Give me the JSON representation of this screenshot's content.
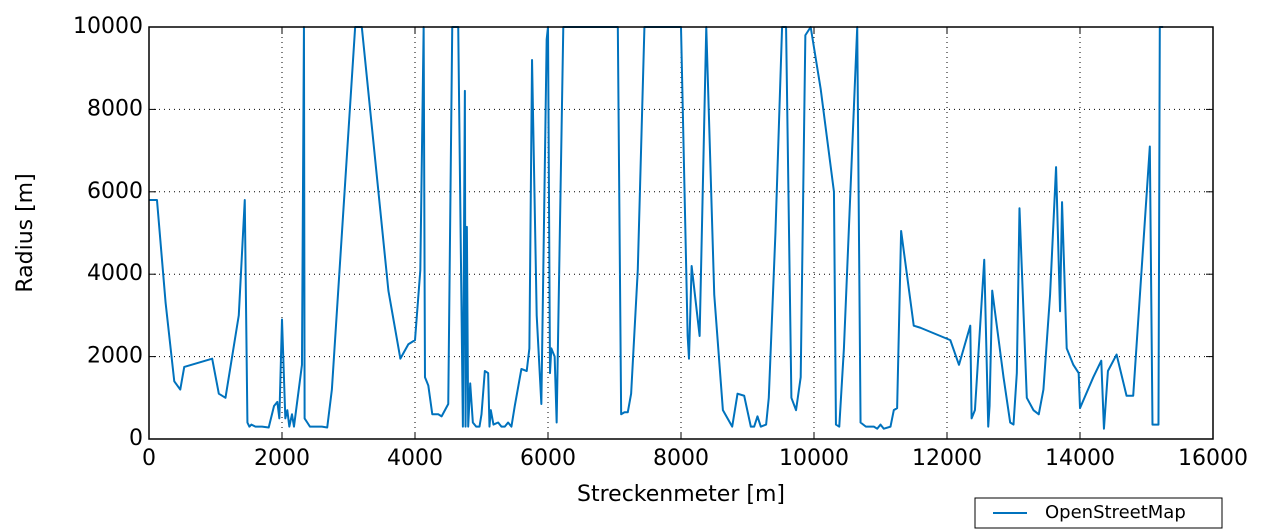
{
  "chart_data": {
    "type": "line",
    "xlabel": "Streckenmeter [m]",
    "ylabel": "Radius [m]",
    "x": [
      0,
      120,
      250,
      380,
      470,
      530,
      950,
      1050,
      1150,
      1350,
      1440,
      1480,
      1510,
      1540,
      1600,
      1700,
      1800,
      1880,
      1930,
      1960,
      2000,
      2050,
      2080,
      2110,
      2150,
      2180,
      2300,
      2330,
      2340,
      2380,
      2420,
      2500,
      2600,
      2680,
      2750,
      3100,
      3200,
      3600,
      3780,
      3900,
      4000,
      4080,
      4130,
      4150,
      4200,
      4260,
      4350,
      4400,
      4500,
      4560,
      4650,
      4720,
      4750,
      4760,
      4780,
      4800,
      4830,
      4870,
      4920,
      4970,
      5000,
      5050,
      5100,
      5120,
      5140,
      5180,
      5250,
      5300,
      5350,
      5400,
      5450,
      5500,
      5600,
      5680,
      5720,
      5760,
      5830,
      5900,
      5980,
      6000,
      6030,
      6050,
      6100,
      6130,
      6230,
      7050,
      7100,
      7150,
      7200,
      7250,
      7350,
      7450,
      7950,
      8000,
      8100,
      8120,
      8160,
      8280,
      8380,
      8500,
      8630,
      8700,
      8770,
      8850,
      8950,
      9050,
      9100,
      9150,
      9200,
      9280,
      9320,
      9420,
      9520,
      9580,
      9660,
      9730,
      9800,
      9870,
      9950,
      10000,
      10100,
      10300,
      10330,
      10380,
      10450,
      10650,
      10700,
      10780,
      10900,
      10950,
      11000,
      11050,
      11150,
      11200,
      11250,
      11310,
      11500,
      11600,
      12050,
      12180,
      12350,
      12370,
      12420,
      12560,
      12620,
      12640,
      12680,
      12850,
      12950,
      13000,
      13050,
      13090,
      13200,
      13300,
      13380,
      13450,
      13550,
      13640,
      13700,
      13730,
      13800,
      13900,
      13980,
      14000,
      14200,
      14320,
      14360,
      14420,
      14550,
      14700,
      14800,
      15050,
      15090,
      15180,
      15200,
      15250
    ],
    "series": [
      {
        "name": "OpenStreetMap",
        "color": "#0072bd",
        "values": [
          5800,
          5800,
          3300,
          1400,
          1200,
          1750,
          1950,
          1100,
          1000,
          3000,
          5800,
          400,
          300,
          350,
          300,
          300,
          280,
          800,
          900,
          500,
          2900,
          500,
          700,
          300,
          600,
          300,
          1800,
          10000,
          500,
          400,
          300,
          300,
          300,
          280,
          1200,
          10000,
          10000,
          3600,
          1950,
          2300,
          2400,
          4100,
          10000,
          1500,
          1300,
          600,
          600,
          550,
          850,
          10000,
          10000,
          300,
          8450,
          300,
          5150,
          300,
          1350,
          400,
          300,
          300,
          600,
          1650,
          1600,
          300,
          700,
          350,
          400,
          300,
          300,
          400,
          300,
          800,
          1700,
          1650,
          2200,
          9200,
          3000,
          850,
          9700,
          10000,
          1600,
          2200,
          2000,
          400,
          10000,
          10000,
          600,
          650,
          650,
          1100,
          4100,
          10000,
          10000,
          10000,
          2500,
          1950,
          4200,
          2500,
          10000,
          3500,
          700,
          500,
          300,
          1100,
          1050,
          300,
          300,
          550,
          300,
          350,
          1000,
          5000,
          10000,
          10000,
          1000,
          700,
          1500,
          9800,
          10000,
          9500,
          8500,
          6000,
          350,
          300,
          2200,
          10000,
          400,
          300,
          300,
          250,
          350,
          250,
          300,
          700,
          750,
          5050,
          2750,
          2700,
          2400,
          1800,
          2750,
          500,
          700,
          4350,
          300,
          800,
          3600,
          1500,
          400,
          350,
          1600,
          5600,
          1000,
          700,
          600,
          1200,
          3500,
          6600,
          3100,
          5750,
          2200,
          1800,
          1600,
          750,
          1500,
          1900,
          250,
          1650,
          2050,
          1050,
          1050,
          7100,
          350,
          350,
          10000,
          10000
        ]
      }
    ],
    "xlim": [
      0,
      16000
    ],
    "xticks": [
      0,
      2000,
      4000,
      6000,
      8000,
      10000,
      12000,
      14000,
      16000
    ],
    "ylim": [
      0,
      10000
    ],
    "yticks": [
      0,
      2000,
      4000,
      6000,
      8000,
      10000
    ],
    "grid": true,
    "legend": "lower right"
  }
}
